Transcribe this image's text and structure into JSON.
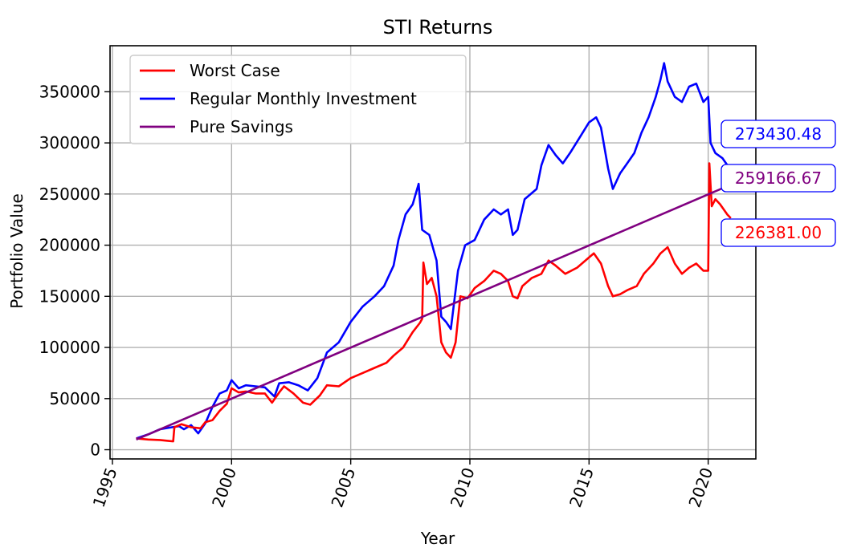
{
  "chart_data": {
    "type": "line",
    "title": "STI Returns",
    "xlabel": "Year",
    "ylabel": "Portfolio Value",
    "xlim": [
      1994.9,
      2022.0
    ],
    "ylim": [
      -9000,
      395000
    ],
    "x_ticks": [
      1995,
      2000,
      2005,
      2010,
      2015,
      2020
    ],
    "x_tick_labels": [
      "1995",
      "2000",
      "2005",
      "2010",
      "2015",
      "2020"
    ],
    "y_ticks": [
      0,
      50000,
      100000,
      150000,
      200000,
      250000,
      300000,
      350000
    ],
    "y_tick_labels": [
      "0",
      "50000",
      "100000",
      "150000",
      "200000",
      "250000",
      "300000",
      "350000"
    ],
    "grid": true,
    "legend": "upper-left",
    "series": [
      {
        "name": "Worst Case",
        "color": "#ff0000",
        "end_label": "226381.00",
        "points": [
          [
            1996.0,
            11000
          ],
          [
            1996.5,
            10000
          ],
          [
            1997.0,
            9500
          ],
          [
            1997.4,
            8500
          ],
          [
            1997.55,
            8200
          ],
          [
            1997.6,
            22000
          ],
          [
            1997.9,
            25000
          ],
          [
            1998.3,
            22000
          ],
          [
            1998.7,
            21000
          ],
          [
            1998.9,
            27000
          ],
          [
            1999.2,
            29000
          ],
          [
            1999.5,
            38000
          ],
          [
            1999.8,
            45000
          ],
          [
            2000.0,
            60000
          ],
          [
            2000.3,
            56000
          ],
          [
            2000.6,
            57000
          ],
          [
            2001.0,
            55000
          ],
          [
            2001.4,
            55000
          ],
          [
            2001.7,
            46000
          ],
          [
            2002.0,
            56000
          ],
          [
            2002.2,
            62000
          ],
          [
            2002.6,
            55000
          ],
          [
            2003.0,
            46000
          ],
          [
            2003.3,
            44000
          ],
          [
            2003.7,
            53000
          ],
          [
            2004.0,
            63000
          ],
          [
            2004.5,
            62000
          ],
          [
            2005.0,
            70000
          ],
          [
            2005.5,
            75000
          ],
          [
            2006.0,
            80000
          ],
          [
            2006.5,
            85000
          ],
          [
            2006.8,
            92000
          ],
          [
            2007.2,
            100000
          ],
          [
            2007.6,
            115000
          ],
          [
            2007.9,
            124000
          ],
          [
            2008.0,
            128000
          ],
          [
            2008.05,
            183000
          ],
          [
            2008.2,
            162000
          ],
          [
            2008.4,
            168000
          ],
          [
            2008.6,
            150000
          ],
          [
            2008.8,
            105000
          ],
          [
            2009.0,
            95000
          ],
          [
            2009.2,
            90000
          ],
          [
            2009.4,
            105000
          ],
          [
            2009.6,
            150000
          ],
          [
            2009.9,
            148000
          ],
          [
            2010.2,
            158000
          ],
          [
            2010.6,
            165000
          ],
          [
            2011.0,
            175000
          ],
          [
            2011.3,
            172000
          ],
          [
            2011.6,
            165000
          ],
          [
            2011.8,
            150000
          ],
          [
            2012.0,
            148000
          ],
          [
            2012.2,
            160000
          ],
          [
            2012.6,
            168000
          ],
          [
            2013.0,
            172000
          ],
          [
            2013.3,
            185000
          ],
          [
            2013.6,
            180000
          ],
          [
            2014.0,
            172000
          ],
          [
            2014.5,
            178000
          ],
          [
            2015.0,
            188000
          ],
          [
            2015.2,
            192000
          ],
          [
            2015.5,
            182000
          ],
          [
            2015.8,
            160000
          ],
          [
            2016.0,
            150000
          ],
          [
            2016.3,
            152000
          ],
          [
            2016.6,
            156000
          ],
          [
            2017.0,
            160000
          ],
          [
            2017.3,
            172000
          ],
          [
            2017.7,
            182000
          ],
          [
            2018.0,
            192000
          ],
          [
            2018.3,
            198000
          ],
          [
            2018.6,
            182000
          ],
          [
            2018.9,
            172000
          ],
          [
            2019.2,
            178000
          ],
          [
            2019.5,
            182000
          ],
          [
            2019.8,
            175000
          ],
          [
            2020.0,
            175000
          ],
          [
            2020.05,
            280000
          ],
          [
            2020.15,
            238000
          ],
          [
            2020.3,
            245000
          ],
          [
            2020.5,
            240000
          ],
          [
            2020.8,
            230000
          ],
          [
            2020.95,
            226381
          ]
        ]
      },
      {
        "name": "Regular Monthly Investment",
        "color": "#0000ff",
        "end_label": "273430.48",
        "points": [
          [
            1996.0,
            11000
          ],
          [
            1996.5,
            15000
          ],
          [
            1997.0,
            20000
          ],
          [
            1997.5,
            22000
          ],
          [
            1997.8,
            23000
          ],
          [
            1998.0,
            20000
          ],
          [
            1998.3,
            24000
          ],
          [
            1998.6,
            16000
          ],
          [
            1998.9,
            26000
          ],
          [
            1999.2,
            42000
          ],
          [
            1999.5,
            55000
          ],
          [
            1999.8,
            58000
          ],
          [
            2000.0,
            68000
          ],
          [
            2000.3,
            60000
          ],
          [
            2000.6,
            63000
          ],
          [
            2001.0,
            62000
          ],
          [
            2001.4,
            61000
          ],
          [
            2001.8,
            52000
          ],
          [
            2002.0,
            65000
          ],
          [
            2002.4,
            66000
          ],
          [
            2002.8,
            63000
          ],
          [
            2003.2,
            58000
          ],
          [
            2003.6,
            70000
          ],
          [
            2004.0,
            95000
          ],
          [
            2004.5,
            105000
          ],
          [
            2005.0,
            125000
          ],
          [
            2005.5,
            140000
          ],
          [
            2006.0,
            150000
          ],
          [
            2006.4,
            160000
          ],
          [
            2006.8,
            180000
          ],
          [
            2007.0,
            205000
          ],
          [
            2007.3,
            230000
          ],
          [
            2007.6,
            240000
          ],
          [
            2007.85,
            260000
          ],
          [
            2008.0,
            215000
          ],
          [
            2008.3,
            210000
          ],
          [
            2008.6,
            185000
          ],
          [
            2008.8,
            130000
          ],
          [
            2009.0,
            125000
          ],
          [
            2009.2,
            118000
          ],
          [
            2009.5,
            175000
          ],
          [
            2009.8,
            200000
          ],
          [
            2010.2,
            205000
          ],
          [
            2010.6,
            225000
          ],
          [
            2011.0,
            235000
          ],
          [
            2011.3,
            230000
          ],
          [
            2011.6,
            235000
          ],
          [
            2011.8,
            210000
          ],
          [
            2012.0,
            215000
          ],
          [
            2012.3,
            245000
          ],
          [
            2012.8,
            255000
          ],
          [
            2013.0,
            278000
          ],
          [
            2013.3,
            298000
          ],
          [
            2013.6,
            288000
          ],
          [
            2013.9,
            280000
          ],
          [
            2014.2,
            290000
          ],
          [
            2014.6,
            305000
          ],
          [
            2015.0,
            320000
          ],
          [
            2015.3,
            325000
          ],
          [
            2015.5,
            315000
          ],
          [
            2015.8,
            275000
          ],
          [
            2016.0,
            255000
          ],
          [
            2016.3,
            270000
          ],
          [
            2016.6,
            280000
          ],
          [
            2016.9,
            290000
          ],
          [
            2017.2,
            310000
          ],
          [
            2017.5,
            325000
          ],
          [
            2017.8,
            345000
          ],
          [
            2018.0,
            362000
          ],
          [
            2018.15,
            378000
          ],
          [
            2018.3,
            360000
          ],
          [
            2018.6,
            345000
          ],
          [
            2018.9,
            340000
          ],
          [
            2019.2,
            355000
          ],
          [
            2019.5,
            358000
          ],
          [
            2019.8,
            340000
          ],
          [
            2020.0,
            345000
          ],
          [
            2020.1,
            300000
          ],
          [
            2020.3,
            290000
          ],
          [
            2020.6,
            285000
          ],
          [
            2020.95,
            273430
          ]
        ]
      },
      {
        "name": "Pure Savings",
        "color": "#800080",
        "end_label": "259166.67",
        "points": [
          [
            1996.0,
            10000
          ],
          [
            2020.95,
            259167
          ]
        ]
      }
    ]
  }
}
